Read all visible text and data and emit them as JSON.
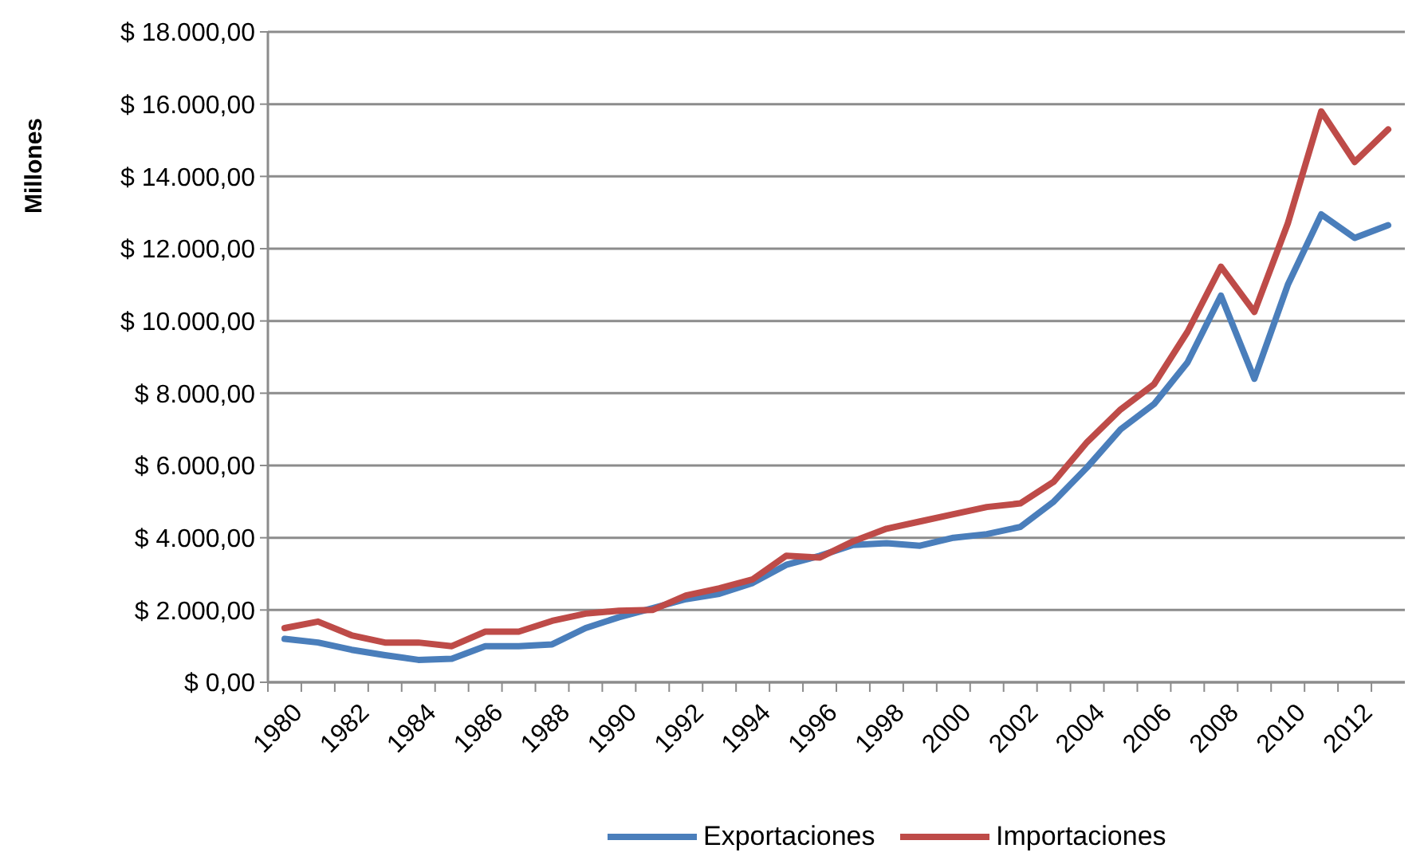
{
  "chart_data": {
    "type": "line",
    "ylabel": "Millones",
    "categories": [
      "1980",
      null,
      "1982",
      null,
      "1984",
      null,
      "1986",
      null,
      "1988",
      null,
      "1990",
      null,
      "1992",
      null,
      "1994",
      null,
      "1996",
      null,
      "1998",
      null,
      "2000",
      null,
      "2002",
      null,
      "2004",
      null,
      "2006",
      null,
      "2008",
      null,
      "2010",
      null,
      "2012",
      null
    ],
    "series": [
      {
        "name": "Exportaciones",
        "color": "#4a7ebb",
        "values": [
          1200,
          1100,
          900,
          750,
          620,
          650,
          1000,
          1000,
          1050,
          1500,
          1800,
          2050,
          2300,
          2450,
          2750,
          3250,
          3500,
          3800,
          3850,
          3780,
          4000,
          4100,
          4300,
          5000,
          5950,
          7000,
          7700,
          8850,
          10700,
          8400,
          11000,
          12950,
          12300,
          12650
        ]
      },
      {
        "name": "Importaciones",
        "color": "#be4b48",
        "values": [
          1500,
          1680,
          1300,
          1100,
          1100,
          1000,
          1400,
          1400,
          1700,
          1900,
          1980,
          2000,
          2400,
          2600,
          2850,
          3500,
          3450,
          3900,
          4250,
          4450,
          4650,
          4850,
          4950,
          5550,
          6650,
          7550,
          8250,
          9700,
          11500,
          10250,
          12700,
          15800,
          14400,
          15300
        ]
      }
    ],
    "ylim": [
      0,
      18000
    ],
    "yticks": [
      {
        "value": 0,
        "label": "$ 0,00"
      },
      {
        "value": 2000,
        "label": "$ 2.000,00"
      },
      {
        "value": 4000,
        "label": "$ 4.000,00"
      },
      {
        "value": 6000,
        "label": "$ 6.000,00"
      },
      {
        "value": 8000,
        "label": "$ 8.000,00"
      },
      {
        "value": 10000,
        "label": "$ 10.000,00"
      },
      {
        "value": 12000,
        "label": "$ 12.000,00"
      },
      {
        "value": 14000,
        "label": "$ 14.000,00"
      },
      {
        "value": 16000,
        "label": "$ 16.000,00"
      },
      {
        "value": 18000,
        "label": "$ 18.000,00"
      }
    ],
    "grid": "y",
    "legend": "bottom",
    "marker": "none",
    "line_style": "solid"
  }
}
